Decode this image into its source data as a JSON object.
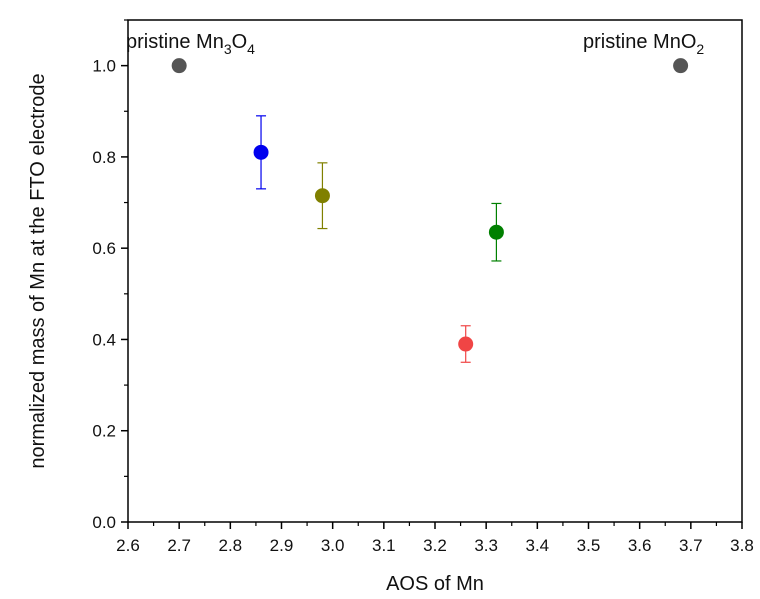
{
  "chart_data": {
    "type": "scatter",
    "title": "",
    "xlabel": "AOS of Mn",
    "ylabel": "normalized mass of Mn at the FTO electrode",
    "xlim": [
      2.6,
      3.8
    ],
    "ylim": [
      0.0,
      1.1
    ],
    "xticks": [
      2.6,
      2.7,
      2.8,
      2.9,
      3.0,
      3.1,
      3.2,
      3.3,
      3.4,
      3.5,
      3.6,
      3.7,
      3.8
    ],
    "xtick_labels": [
      "2.6",
      "2.7",
      "2.8",
      "2.9",
      "3.0",
      "3.1",
      "3.2",
      "3.3",
      "3.4",
      "3.5",
      "3.6",
      "3.7",
      "3.8"
    ],
    "yticks": [
      0.0,
      0.2,
      0.4,
      0.6,
      0.8,
      1.0
    ],
    "ytick_labels": [
      "0.0",
      "0.2",
      "0.4",
      "0.6",
      "0.8",
      "1.0"
    ],
    "grid": false,
    "legend": "none",
    "points": [
      {
        "x": 2.7,
        "y": 1.0,
        "color": "#555555",
        "err": null
      },
      {
        "x": 2.86,
        "y": 0.81,
        "color": "#0000ee",
        "err": 0.08
      },
      {
        "x": 2.98,
        "y": 0.715,
        "color": "#808000",
        "err": 0.072
      },
      {
        "x": 3.26,
        "y": 0.39,
        "color": "#f04545",
        "err": 0.04
      },
      {
        "x": 3.32,
        "y": 0.635,
        "color": "#008000",
        "err": 0.063
      },
      {
        "x": 3.68,
        "y": 1.0,
        "color": "#555555",
        "err": null
      }
    ],
    "annotations": [
      {
        "base": "pristine Mn",
        "sub1": "3",
        "mid": "O",
        "sub2": "4"
      },
      {
        "base": "pristine MnO",
        "sub1": "2",
        "mid": "",
        "sub2": ""
      }
    ]
  }
}
